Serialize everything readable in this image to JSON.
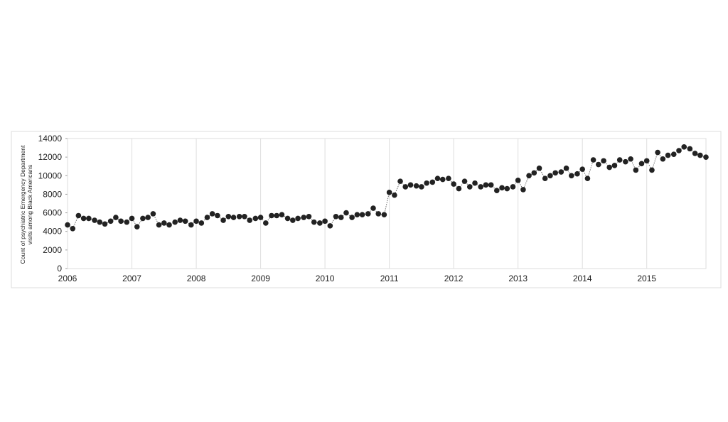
{
  "chart_data": {
    "type": "line",
    "ylabel": "Count of psychiatric Emergency Department visits among Black Americans",
    "x": [
      2006,
      2006.08,
      2006.17,
      2006.25,
      2006.33,
      2006.42,
      2006.5,
      2006.58,
      2006.67,
      2006.75,
      2006.83,
      2006.92,
      2007,
      2007.08,
      2007.17,
      2007.25,
      2007.33,
      2007.42,
      2007.5,
      2007.58,
      2007.67,
      2007.75,
      2007.83,
      2007.92,
      2008,
      2008.08,
      2008.17,
      2008.25,
      2008.33,
      2008.42,
      2008.5,
      2008.58,
      2008.67,
      2008.75,
      2008.83,
      2008.92,
      2009,
      2009.08,
      2009.17,
      2009.25,
      2009.33,
      2009.42,
      2009.5,
      2009.58,
      2009.67,
      2009.75,
      2009.83,
      2009.92,
      2010,
      2010.08,
      2010.17,
      2010.25,
      2010.33,
      2010.42,
      2010.5,
      2010.58,
      2010.67,
      2010.75,
      2010.83,
      2010.92,
      2011,
      2011.08,
      2011.17,
      2011.25,
      2011.33,
      2011.42,
      2011.5,
      2011.58,
      2011.67,
      2011.75,
      2011.83,
      2011.92,
      2012,
      2012.08,
      2012.17,
      2012.25,
      2012.33,
      2012.42,
      2012.5,
      2012.58,
      2012.67,
      2012.75,
      2012.83,
      2012.92,
      2013,
      2013.08,
      2013.17,
      2013.25,
      2013.33,
      2013.42,
      2013.5,
      2013.58,
      2013.67,
      2013.75,
      2013.83,
      2013.92,
      2014,
      2014.08,
      2014.17,
      2014.25,
      2014.33,
      2014.42,
      2014.5,
      2014.58,
      2014.67,
      2014.75,
      2014.83,
      2014.92,
      2015,
      2015.08,
      2015.17,
      2015.25,
      2015.33,
      2015.42,
      2015.5,
      2015.58,
      2015.67,
      2015.75,
      2015.83,
      2015.92
    ],
    "series": [
      {
        "color": "#222222",
        "values": [
          4700,
          4300,
          5700,
          5400,
          5400,
          5200,
          5000,
          4800,
          5100,
          5500,
          5100,
          5000,
          5400,
          4500,
          5400,
          5500,
          5900,
          4700,
          4900,
          4700,
          5000,
          5200,
          5100,
          4700,
          5100,
          4900,
          5500,
          5900,
          5700,
          5200,
          5600,
          5500,
          5600,
          5600,
          5200,
          5400,
          5500,
          4900,
          5700,
          5700,
          5800,
          5400,
          5200,
          5400,
          5500,
          5600,
          5000,
          4900,
          5100,
          4600,
          5600,
          5500,
          6000,
          5500,
          5800,
          5800,
          5900,
          6500,
          5900,
          5800,
          8200,
          7900,
          9400,
          8800,
          9000,
          8900,
          8800,
          9200,
          9300,
          9700,
          9600,
          9700,
          9100,
          8600,
          9400,
          8800,
          9200,
          8800,
          9000,
          9000,
          8400,
          8700,
          8600,
          8800,
          9500,
          8500,
          10000,
          10300,
          10800,
          9700,
          10000,
          10300,
          10400,
          10800,
          10000,
          10200,
          10700,
          9700,
          11700,
          11200,
          11600,
          10900,
          11100,
          11700,
          11500,
          11800,
          10600,
          11300,
          11600,
          10600,
          12500,
          11800,
          12200,
          12300,
          12700,
          13100,
          12900,
          12400,
          12200,
          12000
        ]
      }
    ],
    "xlim": [
      2006,
      2015.92
    ],
    "xticks": [
      2006,
      2007,
      2008,
      2009,
      2010,
      2011,
      2012,
      2013,
      2014,
      2015
    ],
    "ylim": [
      0,
      14000
    ],
    "yticks": [
      0,
      2000,
      4000,
      6000,
      8000,
      10000,
      12000,
      14000
    ],
    "grid": "x"
  }
}
